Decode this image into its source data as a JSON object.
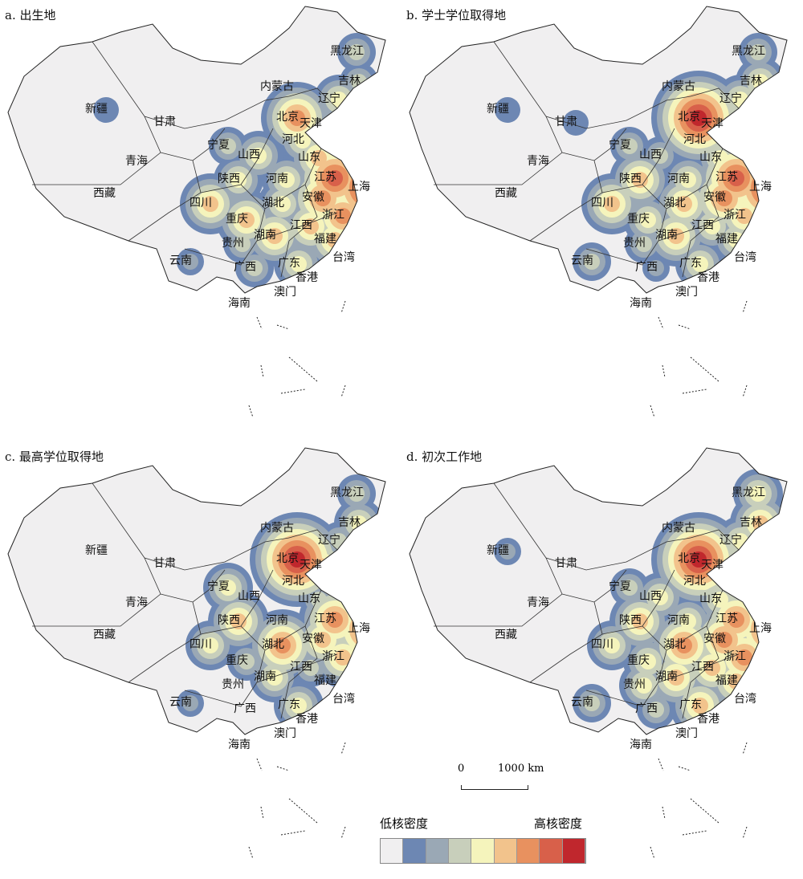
{
  "colors": [
    "#f0eff0",
    "#6d87b3",
    "#9aa8b5",
    "#c8cfbb",
    "#f5f4bc",
    "#f2c38c",
    "#e8915f",
    "#d8604a",
    "#c0272d"
  ],
  "legend": {
    "low": "低核密度",
    "high": "高核密度"
  },
  "scale": {
    "zero": "0",
    "label": "1000 km"
  },
  "province_labels": [
    "新疆",
    "甘肃",
    "青海",
    "西藏",
    "内蒙古",
    "黑龙江",
    "吉林",
    "辽宁",
    "北京",
    "天津",
    "河北",
    "山西",
    "宁夏",
    "山东",
    "陕西",
    "河南",
    "江苏",
    "上海",
    "安徽",
    "四川",
    "湖北",
    "浙江",
    "重庆",
    "湖南",
    "江西",
    "贵州",
    "福建",
    "台湾",
    "云南",
    "广西",
    "广东",
    "香港",
    "澳门",
    "海南"
  ],
  "panels": [
    {
      "title": "a. 出生地",
      "density_level": {
        "上海": 8,
        "江苏": 7,
        "安徽": 6,
        "浙江": 6,
        "北京": 6,
        "山东": 5,
        "河北": 4,
        "四川": 5,
        "重庆": 5,
        "湖南": 5,
        "湖北": 4,
        "河南": 4,
        "江西": 5,
        "福建": 5,
        "广东": 4,
        "陕西": 4,
        "山西": 4,
        "辽宁": 4,
        "吉林": 3,
        "黑龙江": 3,
        "新疆": 1,
        "云南": 2,
        "广西": 3,
        "贵州": 3,
        "宁夏": 3
      }
    },
    {
      "title": "b. 学士学位取得地",
      "density_level": {
        "北京": 8,
        "上海": 8,
        "江苏": 7,
        "安徽": 6,
        "湖北": 5,
        "陕西": 5,
        "四川": 5,
        "湖南": 5,
        "广东": 4,
        "辽宁": 4,
        "吉林": 4,
        "黑龙江": 3,
        "新疆": 1,
        "甘肃": 1,
        "山东": 4,
        "河南": 4,
        "江西": 4,
        "福建": 4,
        "浙江": 5,
        "云南": 3,
        "重庆": 4,
        "山西": 3,
        "宁夏": 3,
        "贵州": 3,
        "广西": 2
      }
    },
    {
      "title": "c. 最高学位取得地",
      "density_level": {
        "北京": 8,
        "上海": 7,
        "江苏": 6,
        "安徽": 5,
        "湖北": 6,
        "陕西": 5,
        "四川": 4,
        "广东": 4,
        "湖南": 4,
        "吉林": 4,
        "黑龙江": 3,
        "辽宁": 3,
        "宁夏": 4,
        "山东": 3,
        "重庆": 3,
        "云南": 2,
        "天津": 5,
        "浙江": 5,
        "江西": 3
      }
    },
    {
      "title": "d. 初次工作地",
      "density_level": {
        "北京": 8,
        "上海": 7,
        "江苏": 6,
        "安徽": 6,
        "湖北": 6,
        "陕西": 5,
        "四川": 4,
        "湖南": 5,
        "广东": 5,
        "浙江": 6,
        "吉林": 5,
        "黑龙江": 4,
        "辽宁": 4,
        "新疆": 2,
        "河北": 4,
        "山东": 4,
        "河南": 4,
        "山西": 4,
        "江西": 5,
        "福建": 5,
        "重庆": 4,
        "贵州": 4,
        "云南": 3,
        "宁夏": 3,
        "广西": 3
      }
    }
  ]
}
